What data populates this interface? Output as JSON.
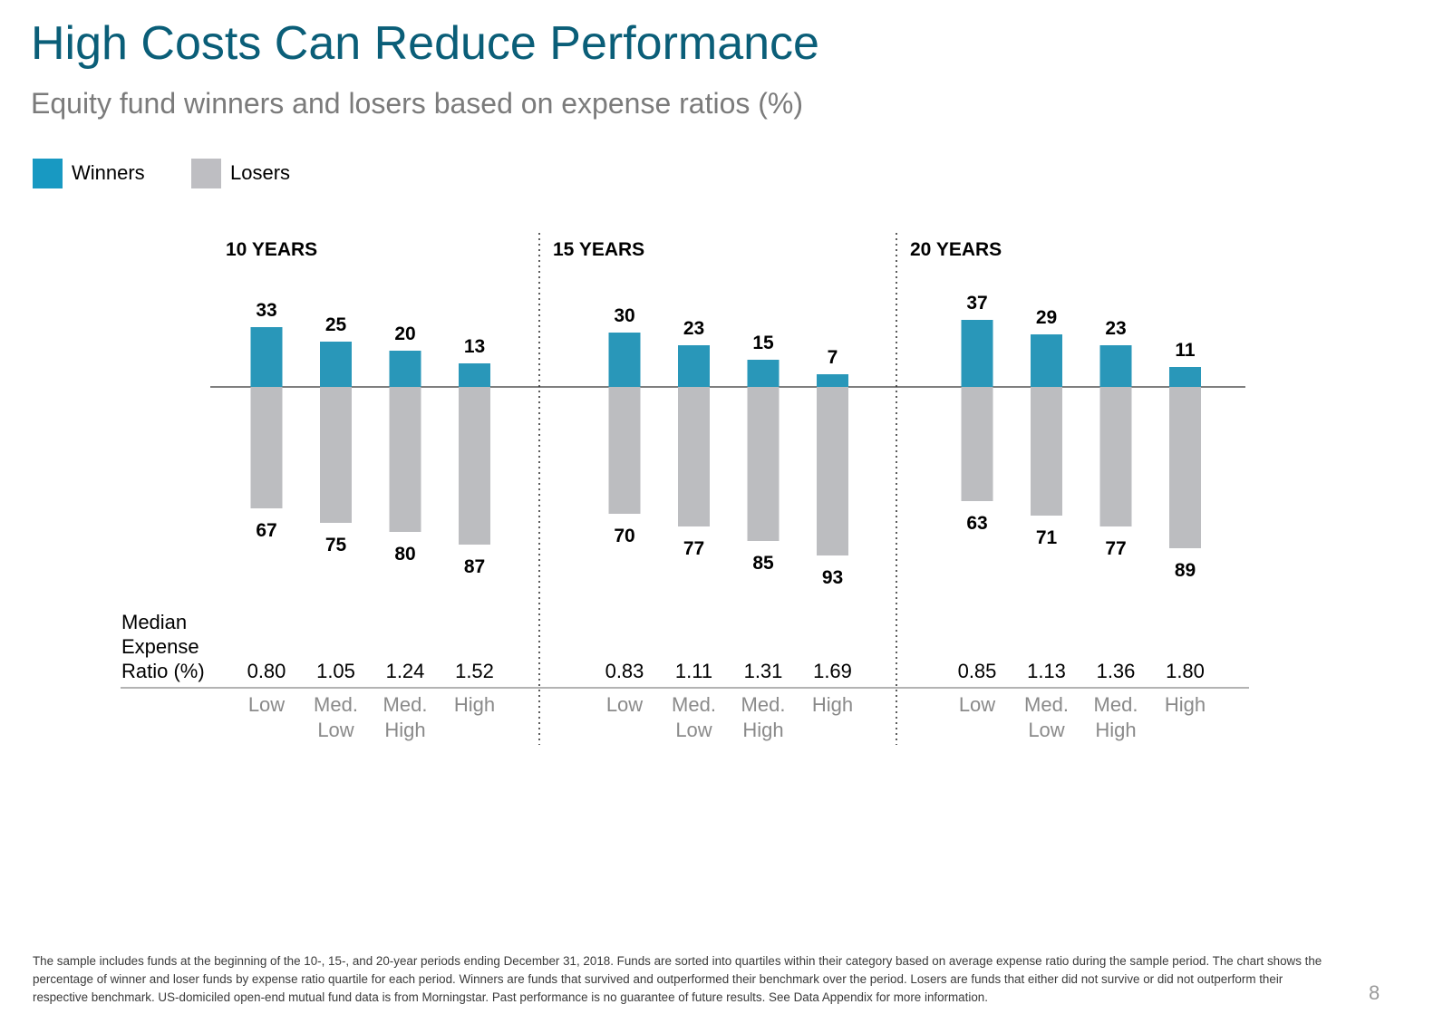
{
  "title": "High Costs Can Reduce Performance",
  "subtitle": "Equity fund winners and losers based on expense ratios (%)",
  "legend": [
    {
      "label": "Winners",
      "color": "#1899c2"
    },
    {
      "label": "Losers",
      "color": "#bebec2"
    }
  ],
  "chart_data": {
    "type": "bar",
    "orientation": "diverging",
    "colors": {
      "winners": "#2997b9",
      "losers": "#bcbdc0",
      "axis": "#555555"
    },
    "row_label_lines": [
      "Median",
      "Expense",
      "Ratio (%)"
    ],
    "panels": [
      {
        "label": "10 YEARS",
        "categories": [
          [
            "Low"
          ],
          [
            "Med.",
            "Low"
          ],
          [
            "Med.",
            "High"
          ],
          [
            "High"
          ]
        ],
        "median_expense_ratio": [
          "0.80",
          "1.05",
          "1.24",
          "1.52"
        ],
        "series": [
          {
            "name": "Winners",
            "values": [
              33,
              25,
              20,
              13
            ]
          },
          {
            "name": "Losers",
            "values": [
              67,
              75,
              80,
              87
            ]
          }
        ]
      },
      {
        "label": "15 YEARS",
        "categories": [
          [
            "Low"
          ],
          [
            "Med.",
            "Low"
          ],
          [
            "Med.",
            "High"
          ],
          [
            "High"
          ]
        ],
        "median_expense_ratio": [
          "0.83",
          "1.11",
          "1.31",
          "1.69"
        ],
        "series": [
          {
            "name": "Winners",
            "values": [
              30,
              23,
              15,
              7
            ]
          },
          {
            "name": "Losers",
            "values": [
              70,
              77,
              85,
              93
            ]
          }
        ]
      },
      {
        "label": "20 YEARS",
        "categories": [
          [
            "Low"
          ],
          [
            "Med.",
            "Low"
          ],
          [
            "Med.",
            "High"
          ],
          [
            "High"
          ]
        ],
        "median_expense_ratio": [
          "0.85",
          "1.13",
          "1.36",
          "1.80"
        ],
        "series": [
          {
            "name": "Winners",
            "values": [
              37,
              29,
              23,
              11
            ]
          },
          {
            "name": "Losers",
            "values": [
              63,
              71,
              77,
              89
            ]
          }
        ]
      }
    ]
  },
  "footnote": "The sample includes funds at the beginning of the 10-, 15-, and 20-year periods ending December 31, 2018. Funds are sorted into quartiles within their category based on average expense ratio during the sample period. The chart shows the percentage of winner and loser funds by expense ratio quartile for each period. Winners are funds that survived and outperformed their benchmark over the period. Losers are funds that either did not survive or did not outperform their respective benchmark. US-domiciled open-end mutual fund data is from Morningstar. Past performance is no guarantee of future results. See Data Appendix for more information.",
  "page_number": "8"
}
